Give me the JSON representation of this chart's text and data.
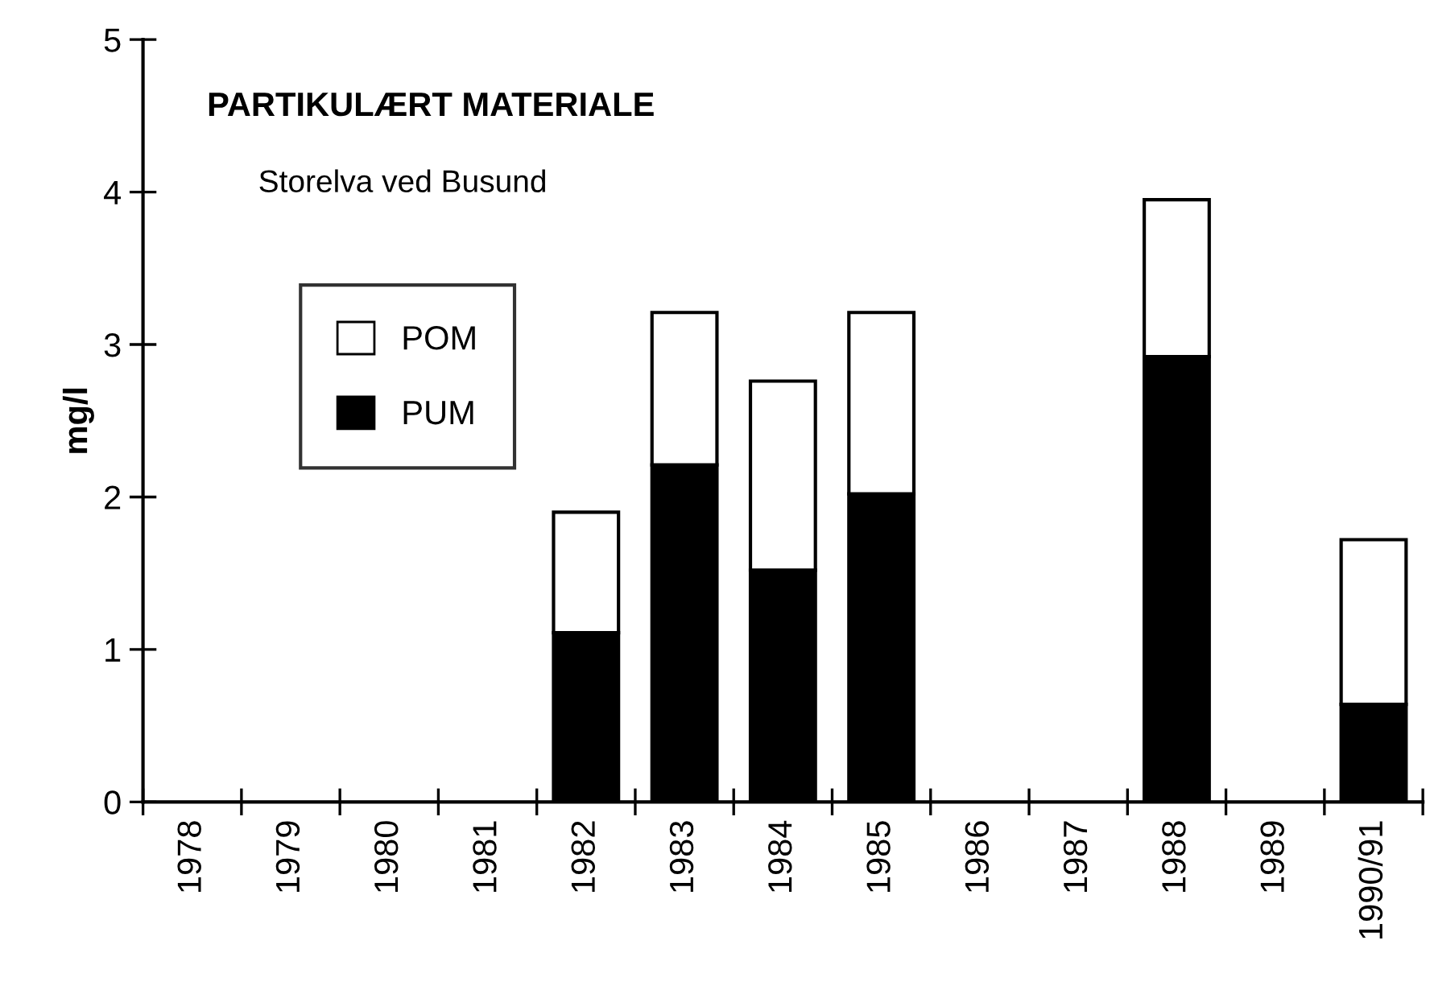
{
  "chart_data": {
    "type": "bar",
    "title": "PARTIKULÆRT MATERIALE",
    "subtitle": "Storelva ved Busund",
    "ylabel": "mg/l",
    "categories": [
      "1978",
      "1979",
      "1980",
      "1981",
      "1982",
      "1983",
      "1984",
      "1985",
      "1986",
      "1987",
      "1988",
      "1989",
      "1990/91"
    ],
    "stacked": true,
    "series": [
      {
        "name": "PUM",
        "color": "#000000",
        "values": [
          null,
          null,
          null,
          null,
          1.11,
          2.21,
          1.52,
          2.02,
          null,
          null,
          2.92,
          null,
          0.64
        ]
      },
      {
        "name": "POM",
        "color": "#ffffff",
        "values": [
          null,
          null,
          null,
          null,
          0.79,
          1.0,
          1.24,
          1.19,
          null,
          null,
          1.03,
          null,
          1.08
        ]
      }
    ],
    "ylim": [
      0,
      5
    ],
    "yticks": [
      0,
      1,
      2,
      3,
      4,
      5
    ],
    "grid": false,
    "legend": "top left"
  }
}
